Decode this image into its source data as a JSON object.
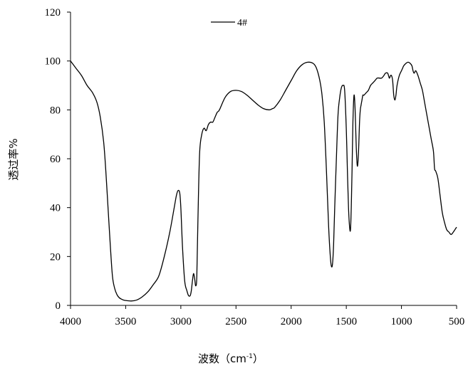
{
  "chart_data": {
    "type": "line",
    "xlabel": "波数（cm",
    "xlabel_sup": "-1",
    "xlabel_close": "）",
    "ylabel": "透过率%",
    "xlim": [
      4000,
      500
    ],
    "ylim": [
      0,
      120
    ],
    "x_reversed": true,
    "xticks": [
      4000,
      3500,
      3000,
      2500,
      2000,
      1500,
      1000,
      500
    ],
    "yticks": [
      0,
      20,
      40,
      60,
      80,
      100,
      120
    ],
    "legend_position": "top-center",
    "grid": false,
    "series": [
      {
        "name": "4#",
        "color": "#000000",
        "x": [
          4000,
          3950,
          3900,
          3850,
          3800,
          3760,
          3730,
          3700,
          3680,
          3660,
          3640,
          3620,
          3600,
          3580,
          3560,
          3540,
          3520,
          3500,
          3450,
          3400,
          3350,
          3300,
          3250,
          3200,
          3150,
          3100,
          3060,
          3040,
          3025,
          3010,
          3000,
          2985,
          2965,
          2945,
          2930,
          2915,
          2905,
          2895,
          2885,
          2875,
          2865,
          2855,
          2845,
          2830,
          2810,
          2790,
          2770,
          2750,
          2730,
          2710,
          2690,
          2670,
          2650,
          2600,
          2550,
          2500,
          2450,
          2400,
          2350,
          2300,
          2250,
          2200,
          2170,
          2150,
          2100,
          2050,
          2000,
          1950,
          1900,
          1850,
          1800,
          1770,
          1740,
          1720,
          1700,
          1680,
          1660,
          1645,
          1635,
          1625,
          1615,
          1605,
          1590,
          1575,
          1560,
          1545,
          1530,
          1515,
          1500,
          1490,
          1480,
          1470,
          1462,
          1455,
          1448,
          1440,
          1430,
          1420,
          1410,
          1400,
          1390,
          1380,
          1373,
          1366,
          1358,
          1350,
          1340,
          1320,
          1300,
          1280,
          1260,
          1240,
          1220,
          1200,
          1180,
          1160,
          1145,
          1125,
          1110,
          1100,
          1090,
          1080,
          1070,
          1060,
          1050,
          1040,
          1020,
          1000,
          990,
          980,
          960,
          940,
          920,
          905,
          895,
          885,
          870,
          850,
          830,
          810,
          790,
          770,
          750,
          730,
          710,
          700,
          690,
          670,
          650,
          630,
          610,
          590,
          570,
          550,
          530,
          515,
          500
        ],
        "y": [
          100,
          97,
          94,
          90,
          87,
          83,
          77,
          67,
          55,
          40,
          25,
          12,
          7,
          4.5,
          3.2,
          2.6,
          2.2,
          2,
          1.8,
          2.2,
          3.5,
          5.5,
          8.5,
          12,
          20,
          30,
          40,
          45,
          47,
          46,
          40,
          24,
          10,
          6,
          4,
          4,
          6,
          10,
          13,
          11,
          8,
          12,
          35,
          62,
          70,
          72.5,
          71.5,
          74,
          75,
          75,
          77,
          79,
          80,
          85,
          87.5,
          88,
          87.5,
          86,
          84,
          82,
          80.5,
          80,
          80.5,
          81,
          84,
          88,
          92,
          96,
          98.5,
          99.5,
          99,
          97,
          92,
          86,
          75,
          55,
          32,
          20,
          16,
          17,
          25,
          40,
          60,
          78,
          85,
          89,
          90,
          88,
          72,
          55,
          40,
          32,
          31,
          40,
          55,
          75,
          86,
          80,
          65,
          57,
          62,
          75,
          80,
          82,
          84,
          86,
          86,
          87,
          88,
          90,
          91,
          92,
          93,
          93,
          93,
          94,
          95,
          95,
          93,
          94,
          94,
          92,
          86,
          84,
          86,
          90,
          94,
          96,
          97,
          98,
          99,
          99.5,
          99,
          98,
          96,
          95,
          96,
          94,
          91,
          88,
          83,
          78,
          73,
          68,
          63,
          56,
          55,
          52,
          45,
          38,
          34,
          31,
          30,
          29,
          30,
          31,
          32
        ]
      }
    ]
  }
}
